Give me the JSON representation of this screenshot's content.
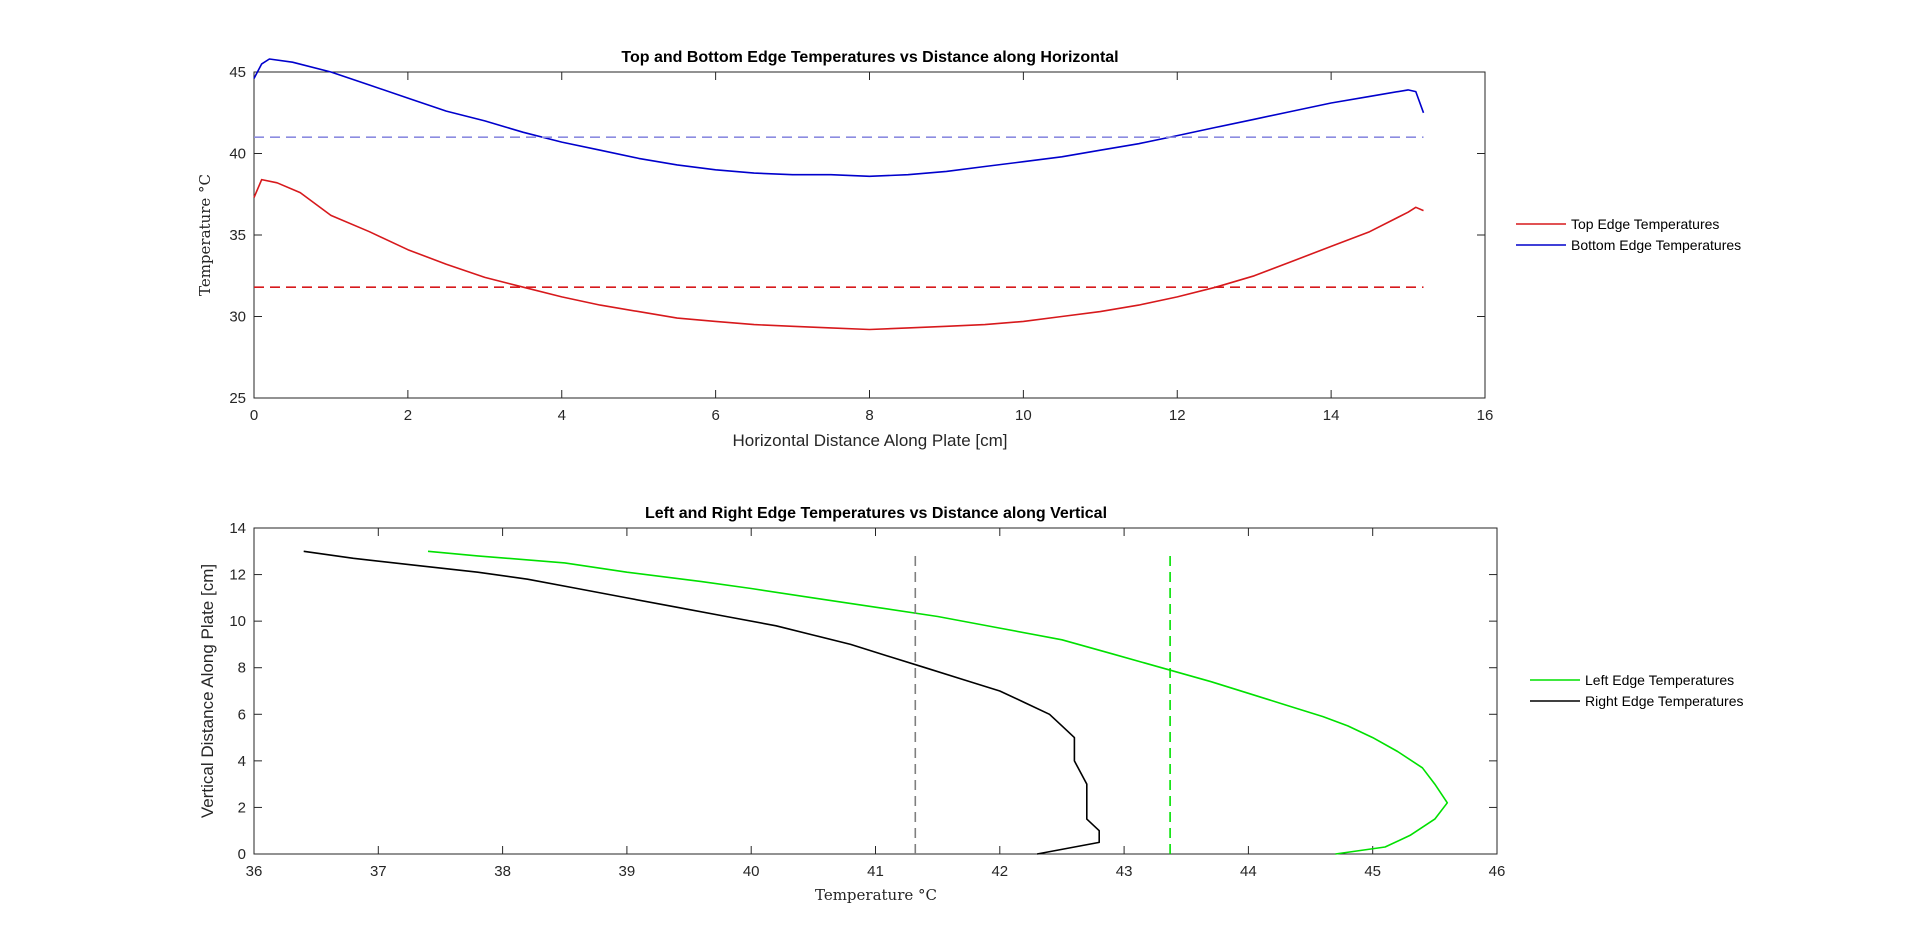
{
  "chart_data": [
    {
      "type": "line",
      "title": "Top and Bottom Edge Temperatures vs Distance along Horizontal",
      "xlabel": "Horizontal Distance Along Plate [cm]",
      "ylabel": "Temperature °C",
      "xlim": [
        0,
        16
      ],
      "ylim": [
        25,
        45
      ],
      "xticks": [
        "0",
        "2",
        "4",
        "6",
        "8",
        "10",
        "12",
        "14",
        "16"
      ],
      "yticks": [
        "25",
        "30",
        "35",
        "40",
        "45"
      ],
      "legend_position": "right-outside",
      "series": [
        {
          "name": "Top Edge Temperatures",
          "color": "#d7191c",
          "style": "solid",
          "x": [
            0,
            0.1,
            0.3,
            0.6,
            1.0,
            1.5,
            2.0,
            2.5,
            3.0,
            3.5,
            4.0,
            4.5,
            5.0,
            5.5,
            6.0,
            6.5,
            7.0,
            7.5,
            8.0,
            8.5,
            9.0,
            9.5,
            10.0,
            10.5,
            11.0,
            11.5,
            12.0,
            12.5,
            13.0,
            13.5,
            14.0,
            14.5,
            15.0,
            15.1,
            15.2
          ],
          "y": [
            37.3,
            38.4,
            38.2,
            37.6,
            36.2,
            35.2,
            34.1,
            33.2,
            32.4,
            31.8,
            31.2,
            30.7,
            30.3,
            29.9,
            29.7,
            29.5,
            29.4,
            29.3,
            29.2,
            29.3,
            29.4,
            29.5,
            29.7,
            30.0,
            30.3,
            30.7,
            31.2,
            31.8,
            32.5,
            33.4,
            34.3,
            35.2,
            36.4,
            36.7,
            36.5
          ]
        },
        {
          "name": "Bottom Edge Temperatures",
          "color": "#0000cc",
          "style": "solid",
          "x": [
            0,
            0.1,
            0.2,
            0.5,
            1.0,
            1.5,
            2.0,
            2.5,
            3.0,
            3.5,
            4.0,
            4.5,
            5.0,
            5.5,
            6.0,
            6.5,
            7.0,
            7.5,
            8.0,
            8.5,
            9.0,
            9.5,
            10.0,
            10.5,
            11.0,
            11.5,
            12.0,
            12.5,
            13.0,
            13.5,
            14.0,
            14.5,
            15.0,
            15.1,
            15.2
          ],
          "y": [
            44.6,
            45.5,
            45.8,
            45.6,
            45.0,
            44.2,
            43.4,
            42.6,
            42.0,
            41.3,
            40.7,
            40.2,
            39.7,
            39.3,
            39.0,
            38.8,
            38.7,
            38.7,
            38.6,
            38.7,
            38.9,
            39.2,
            39.5,
            39.8,
            40.2,
            40.6,
            41.1,
            41.6,
            42.1,
            42.6,
            43.1,
            43.5,
            43.9,
            43.8,
            42.5
          ]
        },
        {
          "name": "",
          "color": "#d7191c",
          "style": "dashed",
          "x": [
            0,
            15.2
          ],
          "y": [
            31.8,
            31.8
          ]
        },
        {
          "name": "",
          "color": "#8c8ce0",
          "style": "dashed",
          "x": [
            0,
            15.2
          ],
          "y": [
            41.0,
            41.0
          ]
        }
      ]
    },
    {
      "type": "line",
      "title": "Left and Right Edge Temperatures vs Distance along Vertical",
      "xlabel": "Temperature °C",
      "ylabel": "Vertical Distance Along Plate [cm]",
      "xlim": [
        36,
        46
      ],
      "ylim": [
        0,
        14
      ],
      "xticks": [
        "36",
        "37",
        "38",
        "39",
        "40",
        "41",
        "42",
        "43",
        "44",
        "45",
        "46"
      ],
      "yticks": [
        "0",
        "2",
        "4",
        "6",
        "8",
        "10",
        "12",
        "14"
      ],
      "legend_position": "right-outside",
      "series": [
        {
          "name": "Left Edge Temperatures",
          "color": "#00e000",
          "style": "solid",
          "x": [
            37.4,
            37.8,
            38.5,
            39.0,
            39.6,
            40.0,
            40.5,
            41.0,
            41.5,
            42.0,
            42.5,
            42.9,
            43.3,
            43.7,
            44.0,
            44.3,
            44.6,
            44.8,
            45.0,
            45.2,
            45.4,
            45.5,
            45.6,
            45.5,
            45.3,
            45.1,
            44.7
          ],
          "y": [
            13.0,
            12.8,
            12.5,
            12.1,
            11.7,
            11.4,
            11.0,
            10.6,
            10.2,
            9.7,
            9.2,
            8.6,
            8.0,
            7.4,
            6.9,
            6.4,
            5.9,
            5.5,
            5.0,
            4.4,
            3.7,
            3.0,
            2.2,
            1.5,
            0.8,
            0.3,
            0.0
          ]
        },
        {
          "name": "Right Edge Temperatures",
          "color": "#000000",
          "style": "solid",
          "x": [
            36.4,
            36.8,
            37.3,
            37.8,
            38.2,
            38.6,
            39.0,
            39.4,
            39.8,
            40.2,
            40.5,
            40.8,
            41.1,
            41.4,
            41.7,
            42.0,
            42.2,
            42.4,
            42.5,
            42.6,
            42.6,
            42.7,
            42.7,
            42.7,
            42.8,
            42.8,
            42.3
          ],
          "y": [
            13.0,
            12.7,
            12.4,
            12.1,
            11.8,
            11.4,
            11.0,
            10.6,
            10.2,
            9.8,
            9.4,
            9.0,
            8.5,
            8.0,
            7.5,
            7.0,
            6.5,
            6.0,
            5.5,
            5.0,
            4.0,
            3.0,
            2.0,
            1.5,
            1.0,
            0.5,
            0.0
          ]
        },
        {
          "name": "",
          "color": "#7f7f7f",
          "style": "dashed",
          "x": [
            41.32,
            41.32
          ],
          "y": [
            0,
            13
          ]
        },
        {
          "name": "",
          "color": "#00e000",
          "style": "dashed",
          "x": [
            43.37,
            43.37
          ],
          "y": [
            0,
            13
          ]
        }
      ]
    }
  ]
}
